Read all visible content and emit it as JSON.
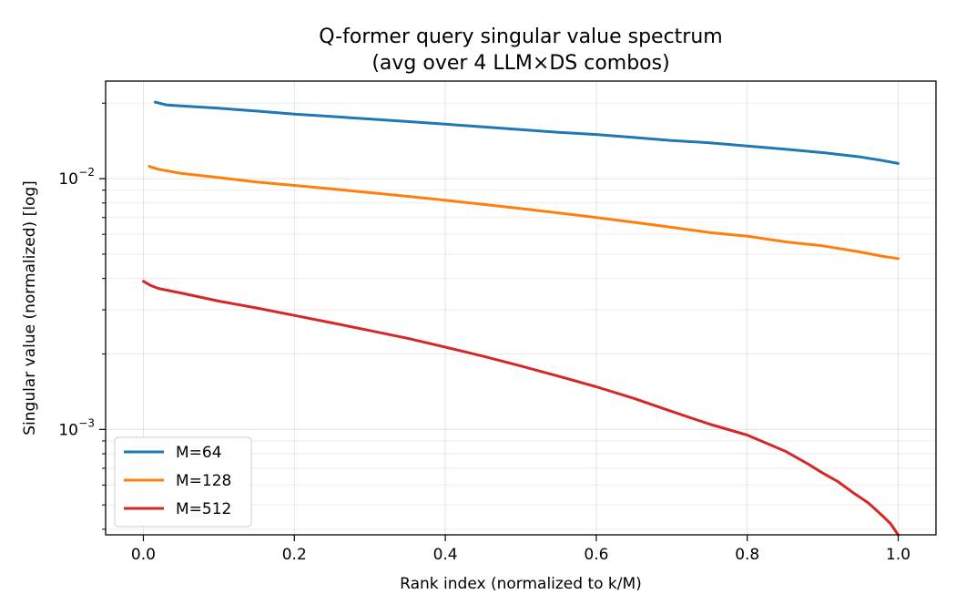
{
  "chart_data": {
    "type": "line",
    "title": "Q-former query singular value spectrum",
    "subtitle": "(avg over 4 LLM×DS combos)",
    "xlabel": "Rank index (normalized to k/M)",
    "ylabel": "Singular value (normalized)  [log]",
    "xlim": [
      -0.05,
      1.05
    ],
    "ylim": [
      0.00038,
      0.0245
    ],
    "y_scale": "log",
    "grid": true,
    "legend_position": "lower-left",
    "x_ticks": [
      {
        "value": 0.0,
        "label": "0.0"
      },
      {
        "value": 0.2,
        "label": "0.2"
      },
      {
        "value": 0.4,
        "label": "0.4"
      },
      {
        "value": 0.6,
        "label": "0.6"
      },
      {
        "value": 0.8,
        "label": "0.8"
      },
      {
        "value": 1.0,
        "label": "1.0"
      }
    ],
    "y_ticks": [
      {
        "value": 0.001,
        "base": "10",
        "exp": "−3"
      },
      {
        "value": 0.01,
        "base": "10",
        "exp": "−2"
      }
    ],
    "series": [
      {
        "name": "M=64",
        "color": "#1f77b4",
        "x": [
          0.0156,
          0.03,
          0.05,
          0.1,
          0.15,
          0.2,
          0.25,
          0.3,
          0.35,
          0.4,
          0.45,
          0.5,
          0.55,
          0.6,
          0.65,
          0.7,
          0.75,
          0.8,
          0.85,
          0.9,
          0.95,
          0.98,
          1.0
        ],
        "y": [
          0.0202,
          0.0197,
          0.0195,
          0.0191,
          0.0186,
          0.0181,
          0.0177,
          0.0173,
          0.0169,
          0.0165,
          0.0161,
          0.0157,
          0.0153,
          0.015,
          0.0146,
          0.0142,
          0.0139,
          0.0135,
          0.0131,
          0.0127,
          0.0122,
          0.0118,
          0.0115
        ]
      },
      {
        "name": "M=128",
        "color": "#ff7f0e",
        "x": [
          0.0078,
          0.02,
          0.05,
          0.1,
          0.15,
          0.2,
          0.25,
          0.3,
          0.35,
          0.4,
          0.45,
          0.5,
          0.55,
          0.6,
          0.65,
          0.7,
          0.75,
          0.8,
          0.85,
          0.9,
          0.95,
          0.98,
          1.0
        ],
        "y": [
          0.0112,
          0.0109,
          0.0105,
          0.0101,
          0.0097,
          0.0094,
          0.0091,
          0.0088,
          0.0085,
          0.0082,
          0.0079,
          0.0076,
          0.0073,
          0.007,
          0.0067,
          0.0064,
          0.0061,
          0.0059,
          0.0056,
          0.0054,
          0.0051,
          0.0049,
          0.0048
        ]
      },
      {
        "name": "M=512",
        "color": "#d62728",
        "x": [
          0.0,
          0.01,
          0.02,
          0.05,
          0.1,
          0.15,
          0.2,
          0.25,
          0.3,
          0.35,
          0.4,
          0.45,
          0.5,
          0.55,
          0.6,
          0.65,
          0.7,
          0.75,
          0.8,
          0.85,
          0.88,
          0.9,
          0.92,
          0.94,
          0.96,
          0.98,
          0.99,
          1.0
        ],
        "y": [
          0.0039,
          0.00375,
          0.00365,
          0.0035,
          0.00325,
          0.00305,
          0.00285,
          0.00266,
          0.00248,
          0.00231,
          0.00213,
          0.00196,
          0.00179,
          0.00163,
          0.00148,
          0.00133,
          0.00118,
          0.00105,
          0.00095,
          0.00082,
          0.00073,
          0.00067,
          0.00062,
          0.00056,
          0.00051,
          0.00045,
          0.00042,
          0.00038
        ]
      }
    ]
  }
}
